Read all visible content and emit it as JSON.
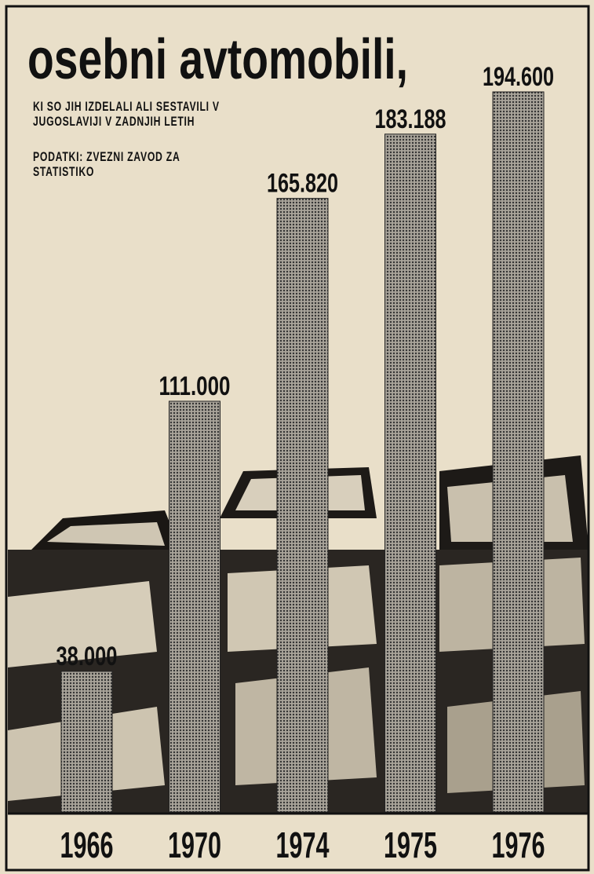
{
  "chart_data": {
    "type": "bar",
    "title": "osebni avtomobili,",
    "subtitle": "KI SO JIH IZDELALI ALI SESTAVILI V JUGOSLAVIJI V ZADNJIH LETIH",
    "source": "PODATKI: ZVEZNI ZAVOD ZA STATISTIKO",
    "categories": [
      "1966",
      "1970",
      "1974",
      "1975",
      "1976"
    ],
    "values": [
      38000,
      111000,
      165820,
      183188,
      194600
    ],
    "value_labels": [
      "38.000",
      "111.000",
      "165.820",
      "183.188",
      "194.600"
    ],
    "color": "#a9a49a"
  }
}
